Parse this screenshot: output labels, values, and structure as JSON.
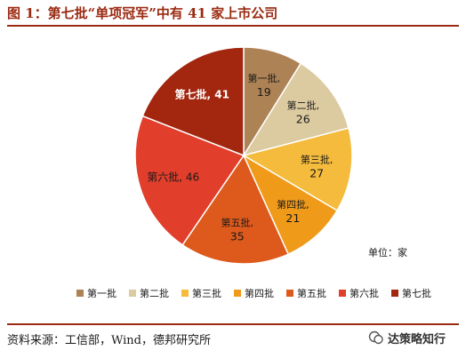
{
  "figure": {
    "title": "图 1：第七批“单项冠军”中有 41 家上市公司",
    "source": "资料来源：工信部，Wind，德邦研究所",
    "watermark": "达策略知行"
  },
  "chart_data": {
    "type": "pie",
    "unit_label": "单位：家",
    "legend_position": "bottom",
    "slices": [
      {
        "label": "第一批",
        "value": 19,
        "color": "#ad8255"
      },
      {
        "label": "第二批",
        "value": 26,
        "color": "#dccaa0"
      },
      {
        "label": "第三批",
        "value": 27,
        "color": "#f4bb3c"
      },
      {
        "label": "第四批",
        "value": 21,
        "color": "#f09a1a"
      },
      {
        "label": "第五批",
        "value": 35,
        "color": "#dd5a1c"
      },
      {
        "label": "第六批",
        "value": 46,
        "color": "#e23e2c"
      },
      {
        "label": "第七批",
        "value": 41,
        "color": "#a3260f"
      }
    ]
  }
}
